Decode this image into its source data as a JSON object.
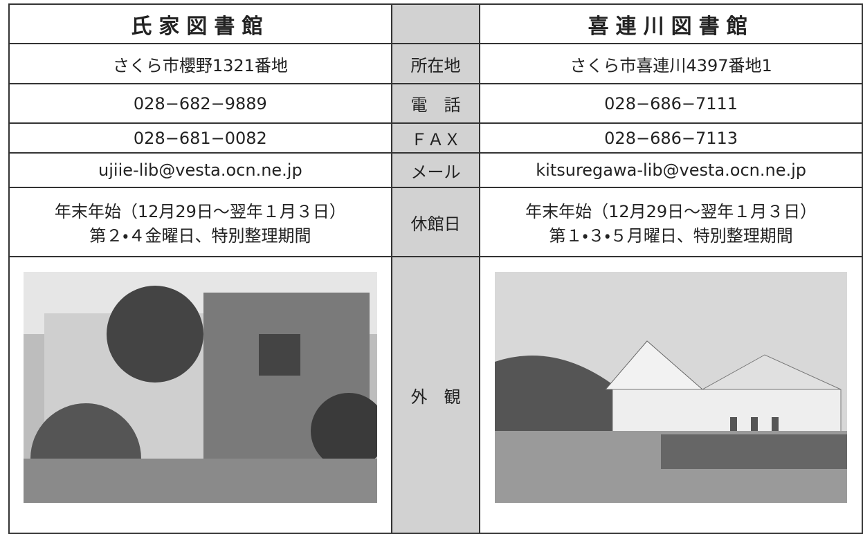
{
  "header": {
    "left_title": "氏家図書館",
    "right_title": "喜連川図書館"
  },
  "rows": [
    {
      "label": "所在地",
      "left": "さくら市櫻野1321番地",
      "right": "さくら市喜連川4397番地1"
    },
    {
      "label": "電　話",
      "left": "028−682−9889",
      "right": "028−686−7111"
    },
    {
      "label": "ＦＡＸ",
      "left": "028−681−0082",
      "right": "028−686−7113"
    },
    {
      "label": "メール",
      "left": "ujiie-lib@vesta.ocn.ne.jp",
      "right": "kitsuregawa-lib@vesta.ocn.ne.jp"
    },
    {
      "label": "休館日",
      "left": [
        "年末年始（12月29日〜翌年１月３日）",
        "第２・４金曜日、特別整理期間"
      ],
      "right": [
        "年末年始（12月29日〜翌年１月３日）",
        "第１・３・５月曜日、特別整理期間"
      ]
    },
    {
      "label": "外　観"
    }
  ]
}
